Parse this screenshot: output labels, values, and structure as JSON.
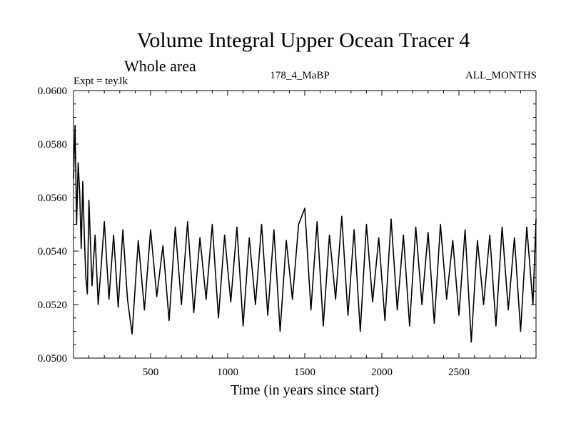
{
  "chart_data": {
    "type": "line",
    "title": "Volume Integral Upper Ocean Tracer 4",
    "subtitle": "Whole area",
    "experiment_label": "Expt = teyJk",
    "center_label": "178_4_MaBP",
    "right_label": "ALL_MONTHS",
    "xlabel": "Time (in years since start)",
    "ylabel": "",
    "xlim": [
      0,
      3000
    ],
    "ylim": [
      0.05,
      0.06
    ],
    "x_ticks": [
      500,
      1000,
      1500,
      2000,
      2500
    ],
    "x_tick_labels": [
      "500",
      "1000",
      "1500",
      "2000",
      "2500"
    ],
    "y_ticks": [
      0.05,
      0.052,
      0.054,
      0.056,
      0.058,
      0.06
    ],
    "y_tick_labels": [
      "0.0500",
      "0.0520",
      "0.0540",
      "0.0560",
      "0.0580",
      "0.0600"
    ],
    "series": [
      {
        "name": "Tracer 4",
        "color": "#000000",
        "x": [
          0,
          10,
          20,
          30,
          40,
          50,
          60,
          70,
          80,
          90,
          100,
          120,
          140,
          160,
          180,
          200,
          230,
          260,
          290,
          320,
          350,
          380,
          420,
          460,
          500,
          540,
          580,
          620,
          660,
          700,
          740,
          780,
          820,
          860,
          900,
          940,
          980,
          1020,
          1060,
          1100,
          1140,
          1180,
          1220,
          1260,
          1300,
          1340,
          1380,
          1420,
          1460,
          1500,
          1540,
          1580,
          1620,
          1660,
          1700,
          1740,
          1780,
          1820,
          1860,
          1900,
          1940,
          1980,
          2020,
          2060,
          2100,
          2140,
          2180,
          2220,
          2260,
          2300,
          2340,
          2380,
          2420,
          2460,
          2500,
          2540,
          2580,
          2620,
          2660,
          2700,
          2740,
          2780,
          2820,
          2860,
          2900,
          2940,
          2980,
          3000
        ],
        "values": [
          0.0567,
          0.0587,
          0.055,
          0.0573,
          0.0562,
          0.0541,
          0.0566,
          0.0546,
          0.053,
          0.0524,
          0.0559,
          0.0527,
          0.0546,
          0.052,
          0.0535,
          0.0551,
          0.0522,
          0.0546,
          0.0519,
          0.0548,
          0.0522,
          0.0509,
          0.0544,
          0.0518,
          0.0548,
          0.0523,
          0.0542,
          0.0514,
          0.0549,
          0.052,
          0.0551,
          0.0517,
          0.0545,
          0.0522,
          0.055,
          0.0515,
          0.0546,
          0.0521,
          0.0549,
          0.0512,
          0.0545,
          0.052,
          0.055,
          0.0516,
          0.0548,
          0.051,
          0.0544,
          0.0522,
          0.055,
          0.0556,
          0.0518,
          0.0551,
          0.0512,
          0.0546,
          0.0522,
          0.0553,
          0.0516,
          0.0548,
          0.051,
          0.055,
          0.0521,
          0.0545,
          0.0514,
          0.0552,
          0.0518,
          0.0546,
          0.0512,
          0.0549,
          0.052,
          0.0547,
          0.0513,
          0.055,
          0.0522,
          0.0544,
          0.0516,
          0.0548,
          0.0506,
          0.0544,
          0.052,
          0.0546,
          0.0512,
          0.0549,
          0.0518,
          0.0545,
          0.051,
          0.0549,
          0.052,
          0.0552
        ]
      }
    ]
  }
}
